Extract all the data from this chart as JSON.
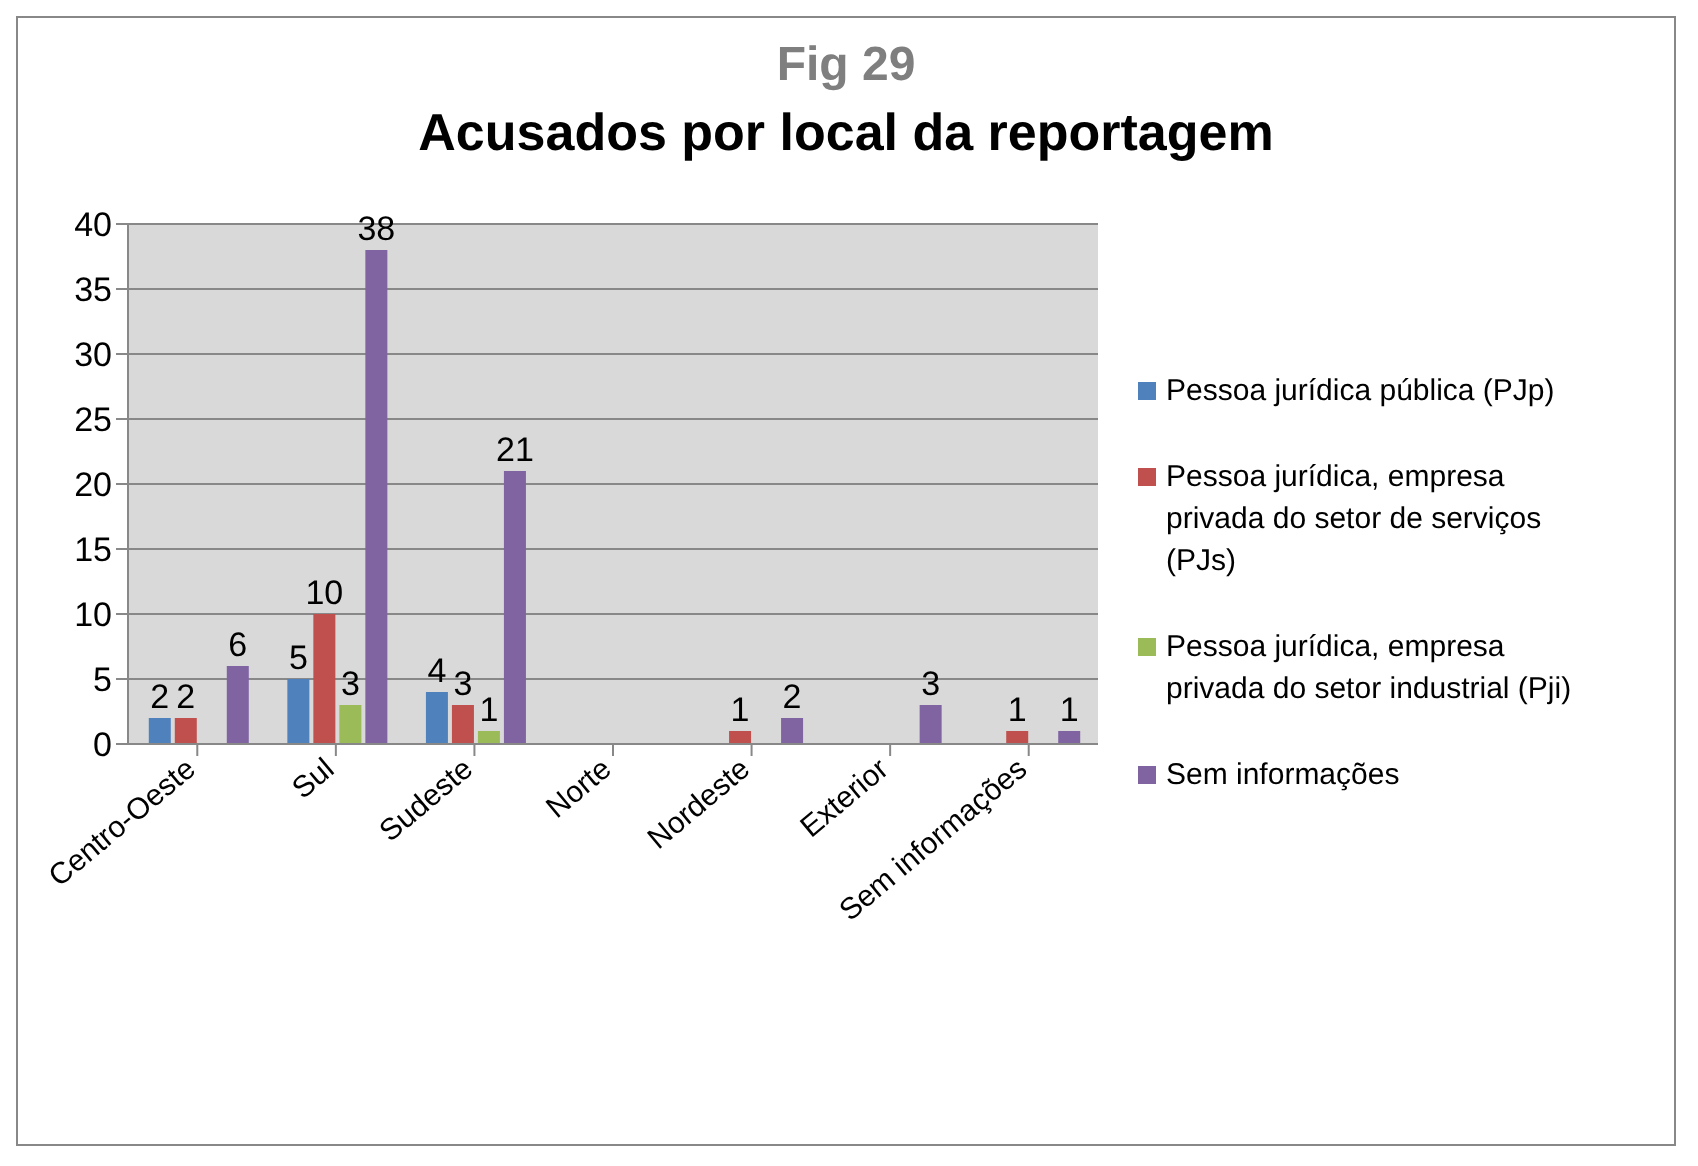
{
  "chart_data": {
    "type": "bar",
    "title": "Acusados por local da reportagem",
    "subtitle": "Fig 29",
    "categories": [
      "Centro-Oeste",
      "Sul",
      "Sudeste",
      "Norte",
      "Nordeste",
      "Exterior",
      "Sem informações"
    ],
    "series": [
      {
        "name": "Pessoa jurídica pública (PJp)",
        "color": "#4f81bd",
        "values": [
          2,
          5,
          4,
          null,
          null,
          null,
          null
        ]
      },
      {
        "name": "Pessoa jurídica, empresa privada do setor de serviços (PJs)",
        "color": "#c0504d",
        "values": [
          2,
          10,
          3,
          null,
          1,
          null,
          1
        ]
      },
      {
        "name": "Pessoa jurídica, empresa privada do setor industrial (Pji)",
        "color": "#9bbb59",
        "values": [
          null,
          3,
          1,
          null,
          null,
          null,
          null
        ]
      },
      {
        "name": "Sem informações",
        "color": "#8064a2",
        "values": [
          6,
          38,
          21,
          null,
          2,
          3,
          1
        ]
      }
    ],
    "ylim": [
      0,
      40
    ],
    "yticks": [
      0,
      5,
      10,
      15,
      20,
      25,
      30,
      35,
      40
    ],
    "grid": "y",
    "legend": "right",
    "data_labels": true
  }
}
